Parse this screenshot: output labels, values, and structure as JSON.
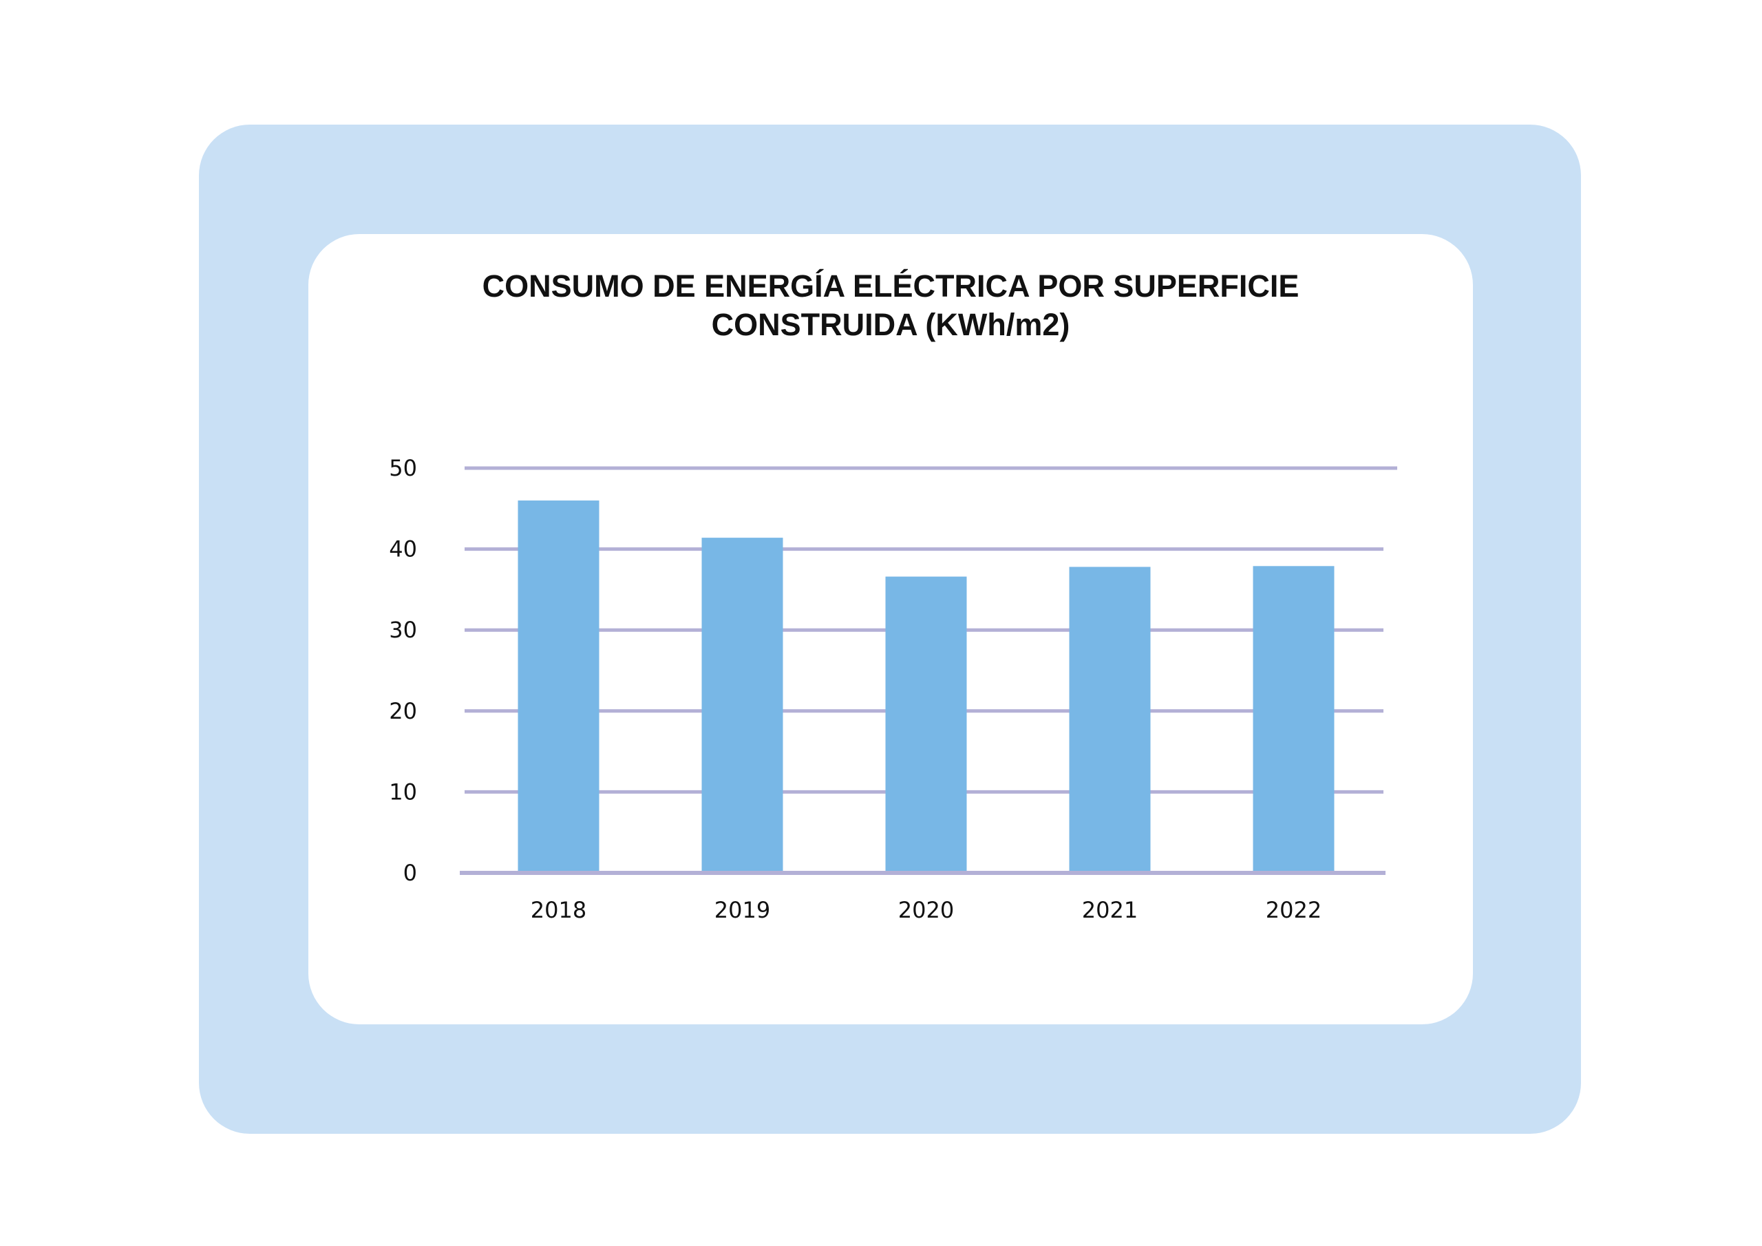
{
  "colors": {
    "frame": "#c9e0f5",
    "card": "#ffffff",
    "bar": "#78b7e6",
    "grid": "#b3b0d6",
    "text": "#111111"
  },
  "chart_data": {
    "type": "bar",
    "title_lines": [
      "CONSUMO DE ENERGÍA ELÉCTRICA POR SUPERFICIE",
      "CONSTRUIDA (KWh/m2)"
    ],
    "title": "CONSUMO DE ENERGÍA ELÉCTRICA POR SUPERFICIE CONSTRUIDA (KWh/m2)",
    "xlabel": "",
    "ylabel": "",
    "categories": [
      "2018",
      "2019",
      "2020",
      "2021",
      "2022"
    ],
    "values": [
      46,
      41.4,
      36.6,
      37.8,
      37.9
    ],
    "ylim": [
      0,
      50
    ],
    "yticks": [
      "0",
      "10",
      "20",
      "30",
      "40",
      "50"
    ],
    "grid": true,
    "legend": "none"
  }
}
